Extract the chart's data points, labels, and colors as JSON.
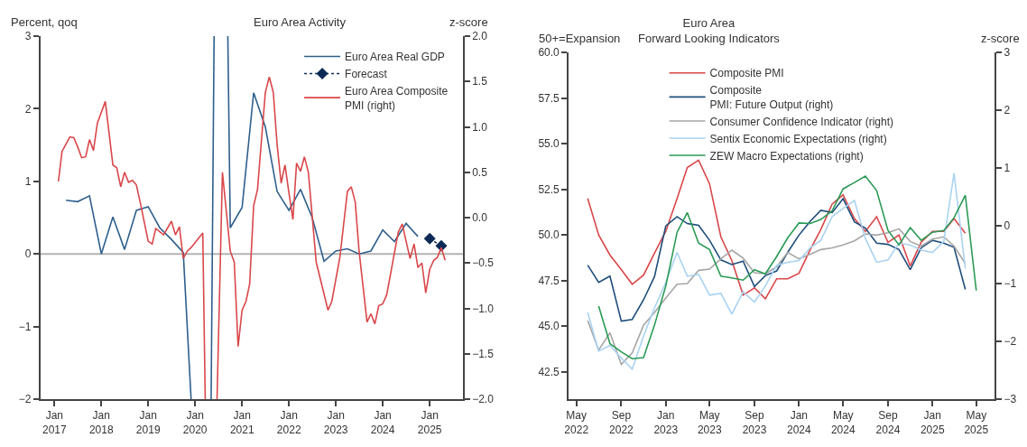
{
  "chart_data": [
    {
      "type": "line",
      "title": "Euro Area Activity",
      "ylabel": "Percent, qoq",
      "y2label": "z-score",
      "xlim": [
        "2016-09-15",
        "2025-09-15"
      ],
      "xticks": [
        {
          "value": "2017-01",
          "label": "Jan\n2017"
        },
        {
          "value": "2018-01",
          "label": "Jan\n2018"
        },
        {
          "value": "2019-01",
          "label": "Jan\n2019"
        },
        {
          "value": "2020-01",
          "label": "Jan\n2020"
        },
        {
          "value": "2021-01",
          "label": "Jan\n2021"
        },
        {
          "value": "2022-01",
          "label": "Jan\n2022"
        },
        {
          "value": "2023-01",
          "label": "Jan\n2023"
        },
        {
          "value": "2024-01",
          "label": "Jan\n2024"
        },
        {
          "value": "2025-01",
          "label": "Jan\n2025"
        }
      ],
      "ylim": [
        -2,
        3
      ],
      "yticks": [
        -2,
        -1,
        0,
        1,
        2,
        3
      ],
      "y2lim": [
        -2,
        2
      ],
      "y2ticks": [
        {
          "value": -2,
          "label": "−2.0"
        },
        {
          "value": -1.5,
          "label": "−1.5"
        },
        {
          "value": -1,
          "label": "−1.0"
        },
        {
          "value": -0.5,
          "label": "−0.5"
        },
        {
          "value": 0,
          "label": "0.0"
        },
        {
          "value": 0.5,
          "label": "0.5"
        },
        {
          "value": 1,
          "label": "1.0"
        },
        {
          "value": 1.5,
          "label": "1.5"
        },
        {
          "value": 2,
          "label": "2.0"
        }
      ],
      "ref_lines": [
        {
          "axis": "y",
          "value": 0,
          "color": "#b3b3b3"
        }
      ],
      "legend": "top right",
      "series": [
        {
          "name": "Euro Area Real GDP",
          "color": "#2e5f8c",
          "x": [
            "2017-04",
            "2017-07",
            "2017-10",
            "2018-01",
            "2018-04",
            "2018-07",
            "2018-10",
            "2019-01",
            "2019-04",
            "2019-07",
            "2019-10",
            "2019-12-01",
            "2020-02-01",
            "2020-05-05",
            "2020-05-28",
            "2020-07-15",
            "2020-09-12",
            "2020-10",
            "2021-01",
            "2021-04",
            "2021-07",
            "2021-10",
            "2022-01",
            "2022-04",
            "2022-07",
            "2022-10",
            "2023-01",
            "2023-04",
            "2023-07",
            "2023-10",
            "2024-01",
            "2024-04",
            "2024-07",
            "2024-10"
          ],
          "values": [
            0.74,
            0.72,
            0.8,
            0.0,
            0.51,
            0.06,
            0.6,
            0.65,
            0.36,
            0.2,
            0.02,
            -2,
            null,
            -2,
            3,
            null,
            3,
            0.36,
            0.64,
            2.22,
            1.75,
            0.86,
            0.6,
            0.89,
            0.5,
            -0.1,
            0.04,
            0.07,
            0.0,
            0.04,
            0.33,
            0.17,
            0.42,
            0.24
          ]
        },
        {
          "name": "Forecast",
          "color": "#0b2a55",
          "marker": "diamond",
          "line_style": "dotted",
          "x": [
            "2025-01",
            "2025-04"
          ],
          "values": [
            0.21,
            0.11
          ]
        },
        {
          "name": "Euro Area Composite\nPMI (right)",
          "color": "#d9474a",
          "axis": "y2",
          "x": [
            "2017-02",
            "2017-03",
            "2017-04",
            "2017-05",
            "2017-06",
            "2017-07",
            "2017-08",
            "2017-09",
            "2017-10",
            "2017-11",
            "2017-12",
            "2018-02",
            "2018-04",
            "2018-05",
            "2018-06",
            "2018-07",
            "2018-08",
            "2018-09",
            "2018-10",
            "2018-11",
            "2019-01",
            "2019-02",
            "2019-03",
            "2019-05",
            "2019-07",
            "2019-08",
            "2019-09",
            "2019-10",
            "2019-11",
            "2019-12",
            "2020-03",
            "2020-03-20",
            "2020-05-01",
            "2020-06-20",
            "2020-08",
            "2020-10",
            "2020-11",
            "2020-12",
            "2021-01",
            "2021-02",
            "2021-03",
            "2021-04",
            "2021-05",
            "2021-07",
            "2021-08",
            "2021-09",
            "2021-10",
            "2021-11",
            "2021-12",
            "2022-01",
            "2022-02",
            "2022-03",
            "2022-04",
            "2022-05",
            "2022-06",
            "2022-08",
            "2022-11",
            "2022-12",
            "2023-02",
            "2023-04",
            "2023-05",
            "2023-06",
            "2023-07",
            "2023-09",
            "2023-10",
            "2023-11",
            "2023-12",
            "2024-01",
            "2024-02",
            "2024-05",
            "2024-06",
            "2024-07",
            "2024-08",
            "2024-09",
            "2024-10",
            "2024-11",
            "2024-12",
            "2025-01",
            "2025-02",
            "2025-03",
            "2025-04",
            "2025-05"
          ],
          "values": [
            0.4,
            0.73,
            0.81,
            0.89,
            0.88,
            0.78,
            0.66,
            0.67,
            0.86,
            0.74,
            1.04,
            1.28,
            0.58,
            0.55,
            0.34,
            0.5,
            0.39,
            0.41,
            0.36,
            0.16,
            -0.26,
            -0.29,
            -0.12,
            -0.19,
            -0.04,
            -0.19,
            -0.1,
            -0.45,
            -0.37,
            -0.33,
            -0.17,
            -2,
            null,
            -2,
            0.5,
            -0.37,
            -0.49,
            -1.42,
            -1.02,
            -0.92,
            -0.73,
            0.13,
            0.31,
            1.38,
            1.55,
            1.38,
            0.8,
            0.38,
            0.58,
            0.27,
            -0.02,
            0.6,
            0.51,
            0.67,
            0.5,
            -0.49,
            -1.02,
            -0.92,
            -0.44,
            0.29,
            0.34,
            0.17,
            -0.37,
            -1.15,
            -1.06,
            -1.17,
            -0.97,
            -0.95,
            -0.85,
            -0.16,
            -0.07,
            -0.26,
            -0.45,
            -0.29,
            -0.55,
            -0.5,
            -0.83,
            -0.57,
            -0.47,
            -0.44,
            -0.33,
            -0.47
          ]
        }
      ]
    },
    {
      "type": "line",
      "title": "Euro Area\nForward Looking Indicators",
      "ylabel": "50+=Expansion",
      "y2label": "z-score",
      "xlim": [
        "2022-04-10",
        "2025-06-20"
      ],
      "xticks": [
        {
          "value": "2022-05",
          "label": "May\n2022"
        },
        {
          "value": "2022-09",
          "label": "Sep\n2022"
        },
        {
          "value": "2023-01",
          "label": "Jan\n2023"
        },
        {
          "value": "2023-05",
          "label": "May\n2023"
        },
        {
          "value": "2023-09",
          "label": "Sep\n2023"
        },
        {
          "value": "2024-01",
          "label": "Jan\n2024"
        },
        {
          "value": "2024-05",
          "label": "May\n2024"
        },
        {
          "value": "2024-09",
          "label": "Sep\n2024"
        },
        {
          "value": "2025-01",
          "label": "Jan\n2025"
        },
        {
          "value": "2025-05",
          "label": "May\n2025"
        }
      ],
      "ylim": [
        41,
        60
      ],
      "yticks": [
        {
          "value": 42.5,
          "label": "42.5"
        },
        {
          "value": 45,
          "label": "45.0"
        },
        {
          "value": 47.5,
          "label": "47.5"
        },
        {
          "value": 50,
          "label": "50.0"
        },
        {
          "value": 52.5,
          "label": "52.5"
        },
        {
          "value": 55,
          "label": "55.0"
        },
        {
          "value": 57.5,
          "label": "57.5"
        },
        {
          "value": 60,
          "label": "60.0"
        }
      ],
      "y2lim": [
        -3,
        3
      ],
      "y2ticks": [
        -3,
        -2,
        -1,
        0,
        1,
        2,
        3
      ],
      "legend": "top",
      "series": [
        {
          "name": "Composite PMI",
          "color": "#d9474a",
          "x": [
            "2022-06",
            "2022-07",
            "2022-08",
            "2022-09",
            "2022-10",
            "2022-11",
            "2022-12",
            "2023-01",
            "2023-02",
            "2023-03",
            "2023-04",
            "2023-05",
            "2023-06",
            "2023-07",
            "2023-08",
            "2023-09",
            "2023-10",
            "2023-11",
            "2023-12",
            "2024-01",
            "2024-02",
            "2024-03",
            "2024-04",
            "2024-05",
            "2024-06",
            "2024-07",
            "2024-08",
            "2024-09",
            "2024-10",
            "2024-11",
            "2024-12",
            "2025-01",
            "2025-02",
            "2025-03",
            "2025-04"
          ],
          "values": [
            52.0,
            50.0,
            48.9,
            48.1,
            47.3,
            47.8,
            49.0,
            50.2,
            52.0,
            53.7,
            54.1,
            52.8,
            49.9,
            48.6,
            46.7,
            47.1,
            46.5,
            47.6,
            47.6,
            47.9,
            49.2,
            50.3,
            51.7,
            52.2,
            50.9,
            50.2,
            51.0,
            49.6,
            50.0,
            48.3,
            49.6,
            50.2,
            50.2,
            50.9,
            50.1
          ]
        },
        {
          "name": "Composite\nPMI: Future Output (right)",
          "color": "#1f4e7a",
          "axis": "y2",
          "x": [
            "2022-06",
            "2022-07",
            "2022-08",
            "2022-09",
            "2022-10",
            "2022-11",
            "2022-12",
            "2023-01",
            "2023-02",
            "2023-03",
            "2023-04",
            "2023-05",
            "2023-06",
            "2023-07",
            "2023-08",
            "2023-09",
            "2023-10",
            "2023-11",
            "2023-12",
            "2024-01",
            "2024-02",
            "2024-03",
            "2024-04",
            "2024-05",
            "2024-06",
            "2024-07",
            "2024-08",
            "2024-09",
            "2024-10",
            "2024-11",
            "2024-12",
            "2025-01",
            "2025-02",
            "2025-03",
            "2025-04"
          ],
          "values": [
            -0.68,
            -0.98,
            -0.87,
            -1.65,
            -1.62,
            -1.28,
            -0.88,
            0.0,
            0.16,
            0.04,
            0.01,
            -0.25,
            -0.59,
            -0.67,
            -0.61,
            -1.05,
            -0.86,
            -0.78,
            -0.46,
            -0.16,
            0.08,
            0.27,
            0.23,
            0.47,
            0.07,
            -0.04,
            -0.3,
            -0.32,
            -0.41,
            -0.76,
            -0.38,
            -0.25,
            -0.3,
            -0.37,
            -1.1
          ]
        },
        {
          "name": "Consumer Confidence Indicator (right)",
          "color": "#a6a6a6",
          "axis": "y2",
          "x": [
            "2022-06",
            "2022-07",
            "2022-08",
            "2022-09",
            "2022-10",
            "2022-11",
            "2022-12",
            "2023-01",
            "2023-02",
            "2023-03",
            "2023-04",
            "2023-05",
            "2023-06",
            "2023-07",
            "2023-08",
            "2023-09",
            "2023-10",
            "2023-11",
            "2023-12",
            "2024-01",
            "2024-02",
            "2024-03",
            "2024-04",
            "2024-05",
            "2024-06",
            "2024-07",
            "2024-08",
            "2024-09",
            "2024-10",
            "2024-11",
            "2024-12",
            "2025-01",
            "2025-02",
            "2025-03",
            "2025-04"
          ],
          "values": [
            -1.64,
            -2.15,
            -1.85,
            -2.4,
            -2.2,
            -1.72,
            -1.5,
            -1.25,
            -1.01,
            -1.0,
            -0.77,
            -0.75,
            -0.57,
            -0.42,
            -0.56,
            -0.81,
            -0.83,
            -0.71,
            -0.46,
            -0.57,
            -0.49,
            -0.41,
            -0.38,
            -0.33,
            -0.26,
            -0.14,
            -0.16,
            -0.12,
            -0.05,
            -0.27,
            -0.35,
            -0.23,
            -0.19,
            -0.35,
            -0.65
          ]
        },
        {
          "name": "Sentix Economic Expectations (right)",
          "color": "#a9d3f2",
          "axis": "y2",
          "x": [
            "2022-06",
            "2022-07",
            "2022-08",
            "2022-09",
            "2022-10",
            "2022-11",
            "2022-12",
            "2023-01",
            "2023-02",
            "2023-03",
            "2023-04",
            "2023-05",
            "2023-06",
            "2023-07",
            "2023-08",
            "2023-09",
            "2023-10",
            "2023-11",
            "2023-12",
            "2024-01",
            "2024-02",
            "2024-03",
            "2024-04",
            "2024-05",
            "2024-06",
            "2024-07",
            "2024-08",
            "2024-09",
            "2024-10",
            "2024-11",
            "2024-12",
            "2025-01",
            "2025-02",
            "2025-03",
            "2025-04"
          ],
          "values": [
            -1.5,
            -2.17,
            -2.07,
            -2.29,
            -2.48,
            -1.91,
            -1.42,
            -0.98,
            -0.46,
            -0.87,
            -0.84,
            -1.2,
            -1.17,
            -1.53,
            -1.14,
            -1.32,
            -1.04,
            -0.68,
            -0.63,
            -0.6,
            -0.38,
            -0.25,
            0.16,
            0.3,
            0.44,
            -0.22,
            -0.63,
            -0.59,
            -0.3,
            -0.33,
            -0.42,
            -0.46,
            -0.27,
            0.91,
            -0.74
          ]
        },
        {
          "name": "ZEW Macro Expectations (right)",
          "color": "#2a9a55",
          "axis": "y2",
          "x": [
            "2022-07",
            "2022-08",
            "2022-09",
            "2022-10",
            "2022-11",
            "2022-12",
            "2023-01",
            "2023-02",
            "2023-03",
            "2023-04",
            "2023-05",
            "2023-06",
            "2023-07",
            "2023-08",
            "2023-09",
            "2023-10",
            "2023-11",
            "2023-12",
            "2024-01",
            "2024-02",
            "2024-03",
            "2024-04",
            "2024-05",
            "2024-06",
            "2024-07",
            "2024-08",
            "2024-09",
            "2024-10",
            "2024-11",
            "2024-12",
            "2025-01",
            "2025-02",
            "2025-03",
            "2025-04",
            "2025-05"
          ],
          "values": [
            -1.39,
            -2.04,
            -2.18,
            -2.3,
            -2.28,
            -1.72,
            -1.04,
            -0.11,
            0.23,
            -0.3,
            -0.41,
            -0.87,
            -0.9,
            -0.94,
            -0.76,
            -0.83,
            -0.53,
            -0.21,
            0.05,
            0.04,
            0.11,
            0.26,
            0.64,
            0.75,
            0.86,
            0.61,
            -0.08,
            -0.33,
            -0.03,
            -0.25,
            -0.11,
            -0.08,
            0.14,
            0.53,
            -1.12
          ]
        }
      ]
    }
  ]
}
